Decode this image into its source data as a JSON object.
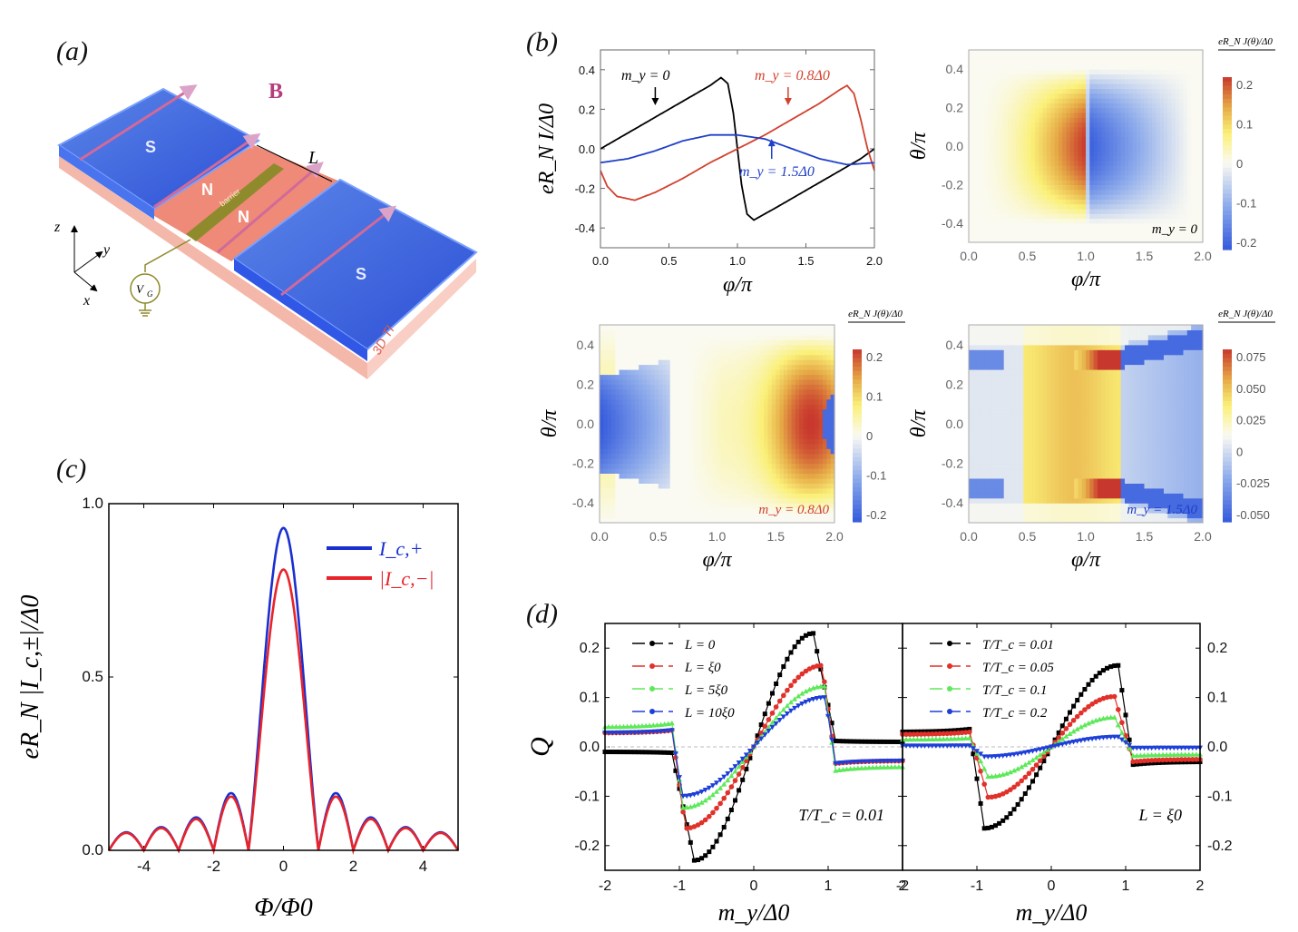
{
  "panels": {
    "a": {
      "label": "(a)"
    },
    "b": {
      "label": "(b)"
    },
    "c": {
      "label": "(c)"
    },
    "d": {
      "label": "(d)"
    }
  },
  "schematic": {
    "field_label": "B",
    "left_electrode": "S",
    "right_electrode": "S",
    "normal_left": "N",
    "normal_right": "N",
    "barrier": "barrier",
    "length_label": "L",
    "gate_label": "V",
    "gate_sub": "G",
    "substrate": "3D TI",
    "axis_z": "z",
    "axis_y": "y",
    "axis_x": "x",
    "colors": {
      "superconductor": "#3a5fd9",
      "normal": "#ef8a78",
      "substrate": "#f6c1b4",
      "barrier": "#8f8a2c",
      "field": "#d98bb6"
    }
  },
  "chart_data": [
    {
      "id": "b-line",
      "type": "line",
      "title": "",
      "xlabel": "φ/π",
      "ylabel": "eR_N I/Δ0",
      "xlim": [
        0.0,
        2.0
      ],
      "ylim": [
        -0.5,
        0.5
      ],
      "xticks": [
        "0.0",
        "0.5",
        "1.0",
        "1.5",
        "2.0"
      ],
      "yticks": [
        "-0.4",
        "-0.2",
        "0.0",
        "0.2",
        "0.4"
      ],
      "series": [
        {
          "name": "m_y = 0",
          "color": "#000000",
          "x": [
            0.0,
            0.2,
            0.4,
            0.6,
            0.8,
            0.88,
            0.93,
            0.97,
            1.0,
            1.03,
            1.07,
            1.12,
            1.3,
            1.5,
            1.7,
            1.9,
            2.0
          ],
          "y": [
            0.0,
            0.08,
            0.16,
            0.24,
            0.32,
            0.36,
            0.33,
            0.18,
            0.0,
            -0.18,
            -0.33,
            -0.36,
            -0.29,
            -0.21,
            -0.13,
            -0.05,
            0.0
          ]
        },
        {
          "name": "m_y = 0.8Δ0",
          "color": "#d2412e",
          "x": [
            0.0,
            0.05,
            0.12,
            0.25,
            0.4,
            0.6,
            0.8,
            1.0,
            1.2,
            1.4,
            1.6,
            1.75,
            1.8,
            1.85,
            1.9,
            1.95,
            2.0
          ],
          "y": [
            -0.11,
            -0.19,
            -0.24,
            -0.26,
            -0.22,
            -0.15,
            -0.07,
            0.0,
            0.07,
            0.15,
            0.23,
            0.3,
            0.32,
            0.28,
            0.15,
            0.0,
            -0.11
          ]
        },
        {
          "name": "m_y = 1.5Δ0",
          "color": "#1f3fc8",
          "x": [
            0.0,
            0.2,
            0.4,
            0.6,
            0.8,
            1.0,
            1.2,
            1.4,
            1.6,
            1.8,
            2.0
          ],
          "y": [
            -0.07,
            -0.05,
            -0.01,
            0.04,
            0.07,
            0.07,
            0.05,
            0.0,
            -0.05,
            -0.08,
            -0.07
          ]
        }
      ],
      "annotations": [
        {
          "text": "m_y = 0",
          "color": "#000000",
          "arrow_to": [
            0.4,
            0.22
          ]
        },
        {
          "text": "m_y = 0.8Δ0",
          "color": "#d2412e",
          "arrow_to": [
            1.37,
            0.22
          ]
        },
        {
          "text": "m_y = 1.5Δ0",
          "color": "#1f3fc8",
          "arrow_to": [
            1.25,
            0.05
          ]
        }
      ]
    },
    {
      "id": "b-map-0",
      "type": "heatmap",
      "xlabel": "φ/π",
      "ylabel": "θ/π",
      "xlim": [
        0.0,
        2.0
      ],
      "ylim": [
        -0.5,
        0.5
      ],
      "xticks": [
        "0.0",
        "0.5",
        "1.0",
        "1.5",
        "2.0"
      ],
      "yticks": [
        "-0.4",
        "-0.2",
        "0.0",
        "0.2",
        "0.4"
      ],
      "colorbar": {
        "title": "eR_N J(θ)/Δ0",
        "range": [
          -0.23,
          0.23
        ],
        "ticks": [
          "0.2",
          "0.1",
          "0",
          "-0.1",
          "-0.2"
        ]
      },
      "annotation": {
        "text": "m_y = 0",
        "color": "#000000"
      },
      "model": "mz0"
    },
    {
      "id": "b-map-08",
      "type": "heatmap",
      "xlabel": "φ/π",
      "ylabel": "θ/π",
      "xlim": [
        0.0,
        2.0
      ],
      "ylim": [
        -0.5,
        0.5
      ],
      "xticks": [
        "0.0",
        "0.5",
        "1.0",
        "1.5",
        "2.0"
      ],
      "yticks": [
        "-0.4",
        "-0.2",
        "0.0",
        "0.2",
        "0.4"
      ],
      "colorbar": {
        "title": "eR_N J(θ)/Δ0",
        "range": [
          -0.2,
          0.2
        ],
        "ticks": [
          "0.2",
          "0.1",
          "0",
          "-0.1",
          "-0.2"
        ]
      },
      "annotation": {
        "text": "m_y = 0.8Δ0",
        "color": "#d2412e"
      },
      "model": "m08"
    },
    {
      "id": "b-map-15",
      "type": "heatmap",
      "xlabel": "φ/π",
      "ylabel": "θ/π",
      "xlim": [
        0.0,
        2.0
      ],
      "ylim": [
        -0.5,
        0.5
      ],
      "xticks": [
        "0.0",
        "0.5",
        "1.0",
        "1.5",
        "2.0"
      ],
      "yticks": [
        "-0.4",
        "-0.2",
        "0.0",
        "0.2",
        "0.4"
      ],
      "colorbar": {
        "title": "eR_N J(θ)/Δ0",
        "range": [
          -0.07,
          0.08
        ],
        "ticks": [
          "0.075",
          "0.050",
          "0.025",
          "0",
          "-0.025",
          "-0.050"
        ]
      },
      "annotation": {
        "text": "m_y = 1.5Δ0",
        "color": "#1f3fc8"
      },
      "model": "m15"
    },
    {
      "id": "c-fraunhofer",
      "type": "line",
      "xlabel": "Φ/Φ0",
      "ylabel": "eR_N |I_c,±|/Δ0",
      "xlim": [
        -5,
        5
      ],
      "ylim": [
        0.0,
        1.0
      ],
      "xticks": [
        "-4",
        "-2",
        "0",
        "2",
        "4"
      ],
      "yticks": [
        "0.0",
        "0.5",
        "1.0"
      ],
      "legend": "top-right",
      "series": [
        {
          "name": "I_c,+",
          "color": "#1a2fd0",
          "peak": 0.93,
          "lobe_peaks": [
            0.165,
            0.095,
            0.067,
            0.052
          ]
        },
        {
          "name": "|I_c,−|",
          "color": "#e8242a",
          "peak": 0.81,
          "lobe_peaks": [
            0.155,
            0.09,
            0.064,
            0.05
          ]
        }
      ]
    },
    {
      "id": "d-left",
      "type": "line",
      "xlabel": "m_y/Δ0",
      "ylabel": "Q",
      "xlim": [
        -2,
        2
      ],
      "ylim": [
        -0.25,
        0.25
      ],
      "xticks": [
        "-2",
        "-1",
        "0",
        "1",
        "2"
      ],
      "yticks": [
        "0.2",
        "0.1",
        "0.0",
        "-0.1",
        "-0.2"
      ],
      "legend": "top-left",
      "annotation": "T/T_c = 0.01",
      "series": [
        {
          "name": "L = 0",
          "color": "#000000",
          "marker": "square",
          "peak": 0.23,
          "peak_x": 0.8,
          "tail": 0.01
        },
        {
          "name": "L = ξ0",
          "color": "#e0312a",
          "marker": "circle",
          "peak": 0.165,
          "peak_x": 0.92,
          "tail": -0.028
        },
        {
          "name": "L = 5ξ0",
          "color": "#5ee85a",
          "marker": "triangle-up",
          "peak": 0.123,
          "peak_x": 0.95,
          "tail": -0.04
        },
        {
          "name": "L = 10ξ0",
          "color": "#1d3fd8",
          "marker": "triangle-down",
          "peak": 0.1,
          "peak_x": 0.96,
          "tail": -0.028
        }
      ]
    },
    {
      "id": "d-right",
      "type": "line",
      "xlabel": "m_y/Δ0",
      "ylabel": "Q",
      "xlim": [
        -2,
        2
      ],
      "ylim": [
        -0.25,
        0.25
      ],
      "xticks": [
        "-2",
        "-1",
        "0",
        "1",
        "2"
      ],
      "yticks": [
        "0.2",
        "0.1",
        "0.0",
        "-0.1",
        "-0.2"
      ],
      "legend": "top-left",
      "annotation": "L = ξ0",
      "series": [
        {
          "name": "T/T_c = 0.01",
          "color": "#000000",
          "marker": "square",
          "peak": 0.165,
          "peak_x": 0.9,
          "tail": -0.03
        },
        {
          "name": "T/T_c = 0.05",
          "color": "#e0312a",
          "marker": "circle",
          "peak": 0.102,
          "peak_x": 0.85,
          "tail": -0.025
        },
        {
          "name": "T/T_c = 0.1",
          "color": "#5ee85a",
          "marker": "triangle-up",
          "peak": 0.06,
          "peak_x": 0.85,
          "tail": -0.015
        },
        {
          "name": "T/T_c = 0.2",
          "color": "#1d3fd8",
          "marker": "triangle-down",
          "peak": 0.02,
          "peak_x": 0.9,
          "tail": -0.002
        }
      ]
    }
  ]
}
